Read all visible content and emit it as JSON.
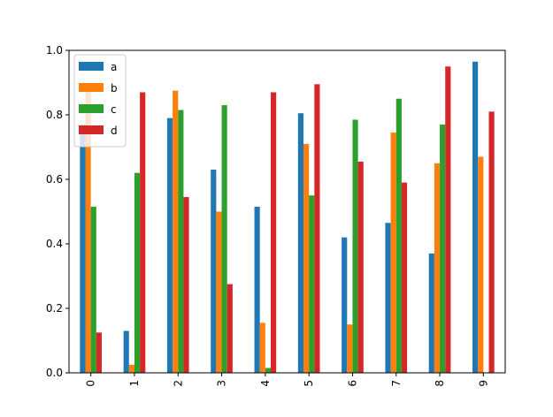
{
  "chart_data": {
    "type": "bar",
    "title": "",
    "xlabel": "",
    "ylabel": "",
    "categories": [
      "0",
      "1",
      "2",
      "3",
      "4",
      "5",
      "6",
      "7",
      "8",
      "9"
    ],
    "ylim": [
      0,
      1.0
    ],
    "yticks": [
      0.0,
      0.2,
      0.4,
      0.6,
      0.8,
      1.0
    ],
    "ytick_labels": [
      "0.0",
      "0.2",
      "0.4",
      "0.6",
      "0.8",
      "1.0"
    ],
    "grid": false,
    "legend_placement": "top-left",
    "series": [
      {
        "name": "a",
        "color": "#1f77b4",
        "values": [
          0.77,
          0.13,
          0.79,
          0.63,
          0.515,
          0.805,
          0.42,
          0.465,
          0.37,
          0.965
        ]
      },
      {
        "name": "b",
        "color": "#ff7f0e",
        "values": [
          0.88,
          0.025,
          0.875,
          0.5,
          0.155,
          0.71,
          0.15,
          0.745,
          0.65,
          0.67
        ]
      },
      {
        "name": "c",
        "color": "#2ca02c",
        "values": [
          0.515,
          0.62,
          0.815,
          0.83,
          0.015,
          0.55,
          0.785,
          0.85,
          0.77,
          0.0
        ]
      },
      {
        "name": "d",
        "color": "#d62728",
        "values": [
          0.125,
          0.87,
          0.545,
          0.275,
          0.87,
          0.895,
          0.655,
          0.59,
          0.95,
          0.81
        ]
      }
    ]
  }
}
